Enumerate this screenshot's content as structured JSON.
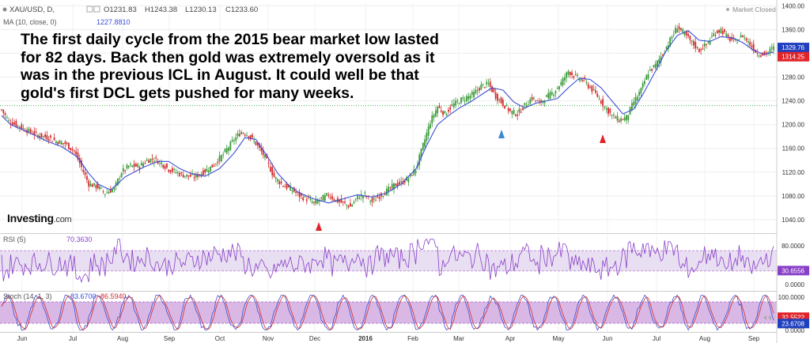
{
  "header": {
    "symbol": "XAU/USD, D,",
    "open": "O1231.83",
    "high": "H1243.38",
    "low": "L1230.13",
    "close": "C1233.60",
    "status": "Market Closed"
  },
  "indicators": {
    "ma": {
      "label": "MA (10, close, 0)",
      "value": "1227.8810"
    },
    "rsi": {
      "label": "RSI (5)",
      "value": "70.3630"
    },
    "stoch": {
      "label": "Stoch (14, 1, 3)",
      "k": "83.6700",
      "d": "86.5940"
    }
  },
  "annotation": {
    "lines": [
      "The first daily cycle from the 2015 bear market low lasted",
      "for 82 days. Back then gold was extremely oversold as it",
      "was in the previous ICL in August. It could well be that",
      "gold's first DCL gets pushed for many weeks."
    ]
  },
  "logo": {
    "name": "Investing",
    "suffix": ".com"
  },
  "colors": {
    "up": "#3a9a3a",
    "down": "#d22b2b",
    "ma": "#3a4fd6",
    "rsi": "#8a3fc9",
    "band": "#e9dff2",
    "stoch_k": "#3a4fd6",
    "stoch_d": "#d22b2b",
    "marker_red": "#e0242a",
    "marker_blue": "#3b8ad8"
  },
  "chart_data": [
    {
      "type": "candlestick",
      "title": "XAU/USD, D,",
      "y_ticks": [
        "1040.00",
        "1080.00",
        "1120.00",
        "1160.00",
        "1200.00",
        "1240.00",
        "1280.00",
        "1320.00",
        "1360.00",
        "1400.00"
      ],
      "ylim": [
        1020,
        1403
      ],
      "x_ticks": [
        "Jun",
        "Jul",
        "Aug",
        "Sep",
        "Oct",
        "Nov",
        "Dec",
        "2016",
        "Feb",
        "Mar",
        "Apr",
        "May",
        "Jun",
        "Jul",
        "Aug",
        "Sep"
      ],
      "series": [
        {
          "name": "MA (10, close, 0)",
          "anchors": [
            [
              0,
              1215
            ],
            [
              5,
              1200
            ],
            [
              15,
              1187
            ],
            [
              25,
              1172
            ],
            [
              33,
              1163
            ],
            [
              42,
              1145
            ],
            [
              48,
              1118
            ],
            [
              53,
              1100
            ],
            [
              60,
              1090
            ],
            [
              68,
              1112
            ],
            [
              78,
              1128
            ],
            [
              86,
              1138
            ],
            [
              92,
              1138
            ],
            [
              98,
              1126
            ],
            [
              104,
              1118
            ],
            [
              112,
              1113
            ],
            [
              120,
              1126
            ],
            [
              128,
              1152
            ],
            [
              134,
              1178
            ],
            [
              140,
              1175
            ],
            [
              146,
              1148
            ],
            [
              152,
              1118
            ],
            [
              158,
              1098
            ],
            [
              164,
              1085
            ],
            [
              172,
              1075
            ],
            [
              180,
              1068
            ],
            [
              188,
              1075
            ],
            [
              196,
              1082
            ],
            [
              204,
              1078
            ],
            [
              212,
              1085
            ],
            [
              220,
              1100
            ],
            [
              228,
              1125
            ],
            [
              234,
              1165
            ],
            [
              240,
              1200
            ],
            [
              246,
              1215
            ],
            [
              252,
              1228
            ],
            [
              258,
              1238
            ],
            [
              264,
              1250
            ],
            [
              270,
              1262
            ],
            [
              276,
              1258
            ],
            [
              282,
              1238
            ],
            [
              288,
              1228
            ],
            [
              294,
              1236
            ],
            [
              300,
              1240
            ],
            [
              306,
              1244
            ],
            [
              312,
              1262
            ],
            [
              318,
              1278
            ],
            [
              324,
              1276
            ],
            [
              330,
              1262
            ],
            [
              336,
              1240
            ],
            [
              342,
              1218
            ],
            [
              348,
              1226
            ],
            [
              354,
              1256
            ],
            [
              360,
              1290
            ],
            [
              366,
              1325
            ],
            [
              372,
              1350
            ],
            [
              378,
              1358
            ],
            [
              384,
              1342
            ],
            [
              390,
              1340
            ],
            [
              396,
              1348
            ],
            [
              402,
              1346
            ],
            [
              408,
              1338
            ],
            [
              414,
              1325
            ],
            [
              420,
              1318
            ],
            [
              425,
              1322
            ]
          ]
        },
        {
          "name": "Price",
          "anchors": [
            [
              0,
              1225
            ],
            [
              4,
              1206
            ],
            [
              9,
              1198
            ],
            [
              14,
              1190
            ],
            [
              20,
              1182
            ],
            [
              26,
              1178
            ],
            [
              30,
              1172
            ],
            [
              35,
              1168
            ],
            [
              40,
              1155
            ],
            [
              44,
              1128
            ],
            [
              48,
              1100
            ],
            [
              53,
              1095
            ],
            [
              57,
              1085
            ],
            [
              62,
              1092
            ],
            [
              66,
              1120
            ],
            [
              70,
              1130
            ],
            [
              76,
              1130
            ],
            [
              80,
              1140
            ],
            [
              84,
              1142
            ],
            [
              88,
              1135
            ],
            [
              92,
              1125
            ],
            [
              96,
              1120
            ],
            [
              100,
              1115
            ],
            [
              106,
              1112
            ],
            [
              110,
              1118
            ],
            [
              116,
              1130
            ],
            [
              122,
              1150
            ],
            [
              128,
              1175
            ],
            [
              132,
              1188
            ],
            [
              136,
              1182
            ],
            [
              140,
              1168
            ],
            [
              145,
              1145
            ],
            [
              150,
              1112
            ],
            [
              155,
              1098
            ],
            [
              160,
              1090
            ],
            [
              164,
              1080
            ],
            [
              168,
              1075
            ],
            [
              172,
              1068
            ],
            [
              176,
              1075
            ],
            [
              180,
              1082
            ],
            [
              184,
              1072
            ],
            [
              188,
              1068
            ],
            [
              192,
              1062
            ],
            [
              196,
              1078
            ],
            [
              200,
              1082
            ],
            [
              204,
              1070
            ],
            [
              208,
              1080
            ],
            [
              212,
              1088
            ],
            [
              216,
              1098
            ],
            [
              220,
              1102
            ],
            [
              224,
              1110
            ],
            [
              228,
              1125
            ],
            [
              232,
              1165
            ],
            [
              236,
              1205
            ],
            [
              240,
              1230
            ],
            [
              244,
              1218
            ],
            [
              248,
              1232
            ],
            [
              252,
              1240
            ],
            [
              256,
              1246
            ],
            [
              260,
              1252
            ],
            [
              264,
              1265
            ],
            [
              268,
              1268
            ],
            [
              272,
              1248
            ],
            [
              276,
              1235
            ],
            [
              280,
              1222
            ],
            [
              284,
              1218
            ],
            [
              288,
              1232
            ],
            [
              292,
              1245
            ],
            [
              296,
              1236
            ],
            [
              300,
              1246
            ],
            [
              304,
              1255
            ],
            [
              308,
              1270
            ],
            [
              312,
              1290
            ],
            [
              316,
              1280
            ],
            [
              320,
              1275
            ],
            [
              324,
              1262
            ],
            [
              328,
              1248
            ],
            [
              332,
              1230
            ],
            [
              336,
              1215
            ],
            [
              340,
              1208
            ],
            [
              344,
              1212
            ],
            [
              348,
              1238
            ],
            [
              352,
              1258
            ],
            [
              356,
              1288
            ],
            [
              360,
              1300
            ],
            [
              364,
              1320
            ],
            [
              368,
              1342
            ],
            [
              372,
              1365
            ],
            [
              376,
              1352
            ],
            [
              380,
              1338
            ],
            [
              384,
              1325
            ],
            [
              388,
              1335
            ],
            [
              392,
              1352
            ],
            [
              396,
              1360
            ],
            [
              400,
              1345
            ],
            [
              404,
              1340
            ],
            [
              408,
              1350
            ],
            [
              412,
              1335
            ],
            [
              416,
              1320
            ],
            [
              420,
              1318
            ],
            [
              425,
              1329
            ]
          ]
        }
      ],
      "markers": [
        {
          "x": "Dec",
          "color": "red",
          "direction": "up"
        },
        {
          "x": "Apr",
          "color": "blue",
          "direction": "up"
        },
        {
          "x": "Jun",
          "color": "red",
          "direction": "up"
        }
      ],
      "horizontal_line": 1232,
      "price_tags": [
        "1329.76",
        "1314.25"
      ]
    },
    {
      "type": "line",
      "title": "RSI (5)",
      "y_ticks": [
        "80.0000",
        "0.0000"
      ],
      "band": [
        30,
        70
      ],
      "value_tag": "30.6556"
    },
    {
      "type": "line",
      "title": "Stoch (14, 1, 3)",
      "y_ticks": [
        "100.0000",
        "0.0000"
      ],
      "band": [
        20,
        80
      ],
      "value_tags": [
        "32.5522",
        "23.6708"
      ]
    }
  ]
}
